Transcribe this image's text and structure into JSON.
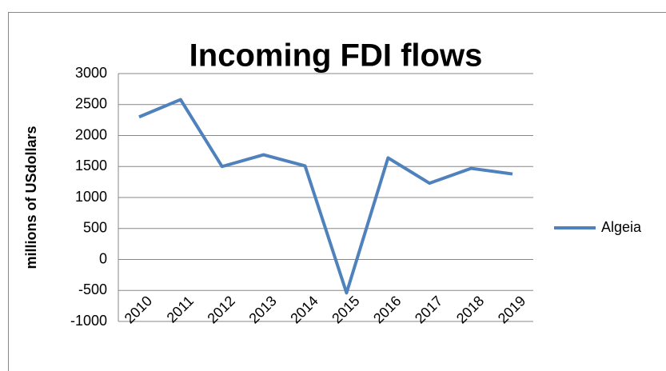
{
  "chart_data": {
    "type": "line",
    "title": "Incoming FDI flows",
    "y_label": "millions of USdollars",
    "categories": [
      "2010",
      "2011",
      "2012",
      "2013",
      "2014",
      "2015",
      "2016",
      "2017",
      "2018",
      "2019"
    ],
    "series": [
      {
        "name": "Algeia",
        "color": "#4f81bd",
        "values": [
          2300,
          2580,
          1500,
          1690,
          1510,
          -540,
          1640,
          1230,
          1470,
          1380
        ]
      }
    ],
    "ylim": [
      -1000,
      3000
    ],
    "yticks": [
      -1000,
      -500,
      0,
      500,
      1000,
      1500,
      2000,
      2500,
      3000
    ],
    "grid": true,
    "legend": "right"
  }
}
